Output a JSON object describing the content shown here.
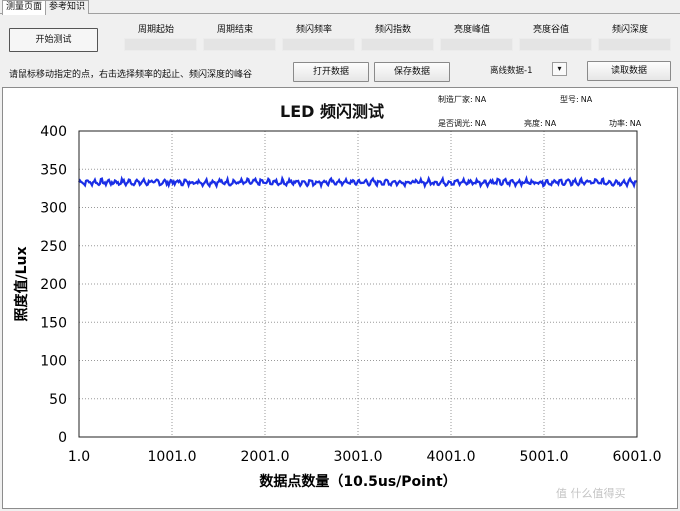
{
  "tabs": [
    {
      "label": "测量页面",
      "active": true
    },
    {
      "label": "参考知识",
      "active": false
    }
  ],
  "controls": {
    "start_button": "开始测试",
    "hint": "请鼠标移动指定的点，右击选择频率的起止、频闪深度的峰谷",
    "open_button": "打开数据",
    "save_button": "保存数据",
    "offline_label": "离线数据-1",
    "dropdown_arrow": "▾",
    "read_button": "读取数据"
  },
  "headers": [
    "周期起始",
    "周期结束",
    "频闪频率",
    "频闪指数",
    "亮度峰值",
    "亮度谷值",
    "频闪深度"
  ],
  "meta": {
    "manufacturer_label": "制造厂家:",
    "manufacturer_value": "NA",
    "model_label": "型号:",
    "model_value": "NA",
    "dimmable_label": "是否调光:",
    "dimmable_value": "NA",
    "brightness_label": "亮度:",
    "brightness_value": "NA",
    "power_label": "功率:",
    "power_value": "NA"
  },
  "colors": {
    "series": "#1a2ee6",
    "grid": "#9a9a9a"
  },
  "chart_data": {
    "type": "line",
    "title": "LED 频闪测试",
    "xlabel": "数据点数量（10.5us/Point）",
    "ylabel": "照度值/Lux",
    "xlim": [
      1,
      6001
    ],
    "ylim": [
      0,
      400
    ],
    "x_ticks": [
      "1.0",
      "1001.0",
      "2001.0",
      "3001.0",
      "4001.0",
      "5001.0",
      "6001.0"
    ],
    "y_ticks": [
      "0",
      "50",
      "100",
      "150",
      "200",
      "250",
      "300",
      "350",
      "400"
    ],
    "grid": true,
    "series": [
      {
        "mean": 333,
        "min": 328,
        "max": 338,
        "x": [
          1,
          6001
        ]
      }
    ]
  },
  "watermark": "值 什么值得买"
}
